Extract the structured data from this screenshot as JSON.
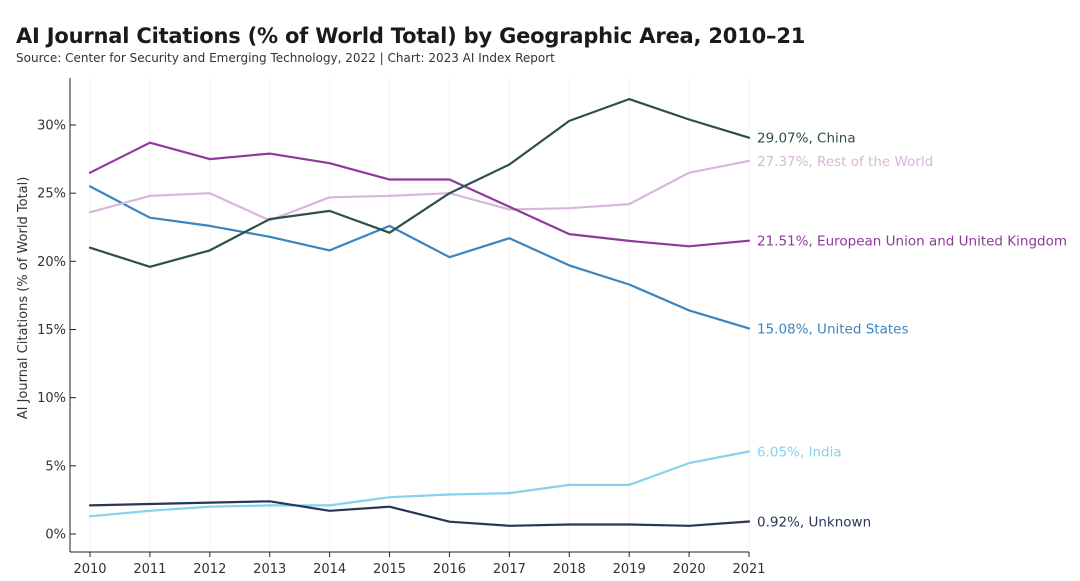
{
  "header": {
    "title": "AI Journal Citations (% of World Total) by Geographic Area, 2010–21",
    "subtitle": "Source: Center for Security and Emerging Technology, 2022 | Chart: 2023 AI Index Report"
  },
  "chart_data": {
    "type": "line",
    "title": "AI Journal Citations (% of World Total) by Geographic Area, 2010–21",
    "xlabel": "",
    "ylabel": "AI Journal Citations (% of World Total)",
    "x": [
      2010,
      2011,
      2012,
      2013,
      2014,
      2015,
      2016,
      2017,
      2018,
      2019,
      2020,
      2021
    ],
    "xtick_labels": [
      "2010",
      "2011",
      "2012",
      "2013",
      "2014",
      "2015",
      "2016",
      "2017",
      "2018",
      "2019",
      "2020",
      "2021"
    ],
    "ylim": [
      0,
      33
    ],
    "yticks": [
      0,
      5,
      10,
      15,
      20,
      25,
      30
    ],
    "ytick_labels": [
      "0%",
      "5%",
      "10%",
      "15%",
      "20%",
      "25%",
      "30%"
    ],
    "grid": "vertical",
    "series": [
      {
        "name": "China",
        "color": "#2e4f4f",
        "end_label": "29.07%, China",
        "values": [
          21.0,
          19.6,
          20.8,
          23.1,
          23.7,
          22.1,
          25.0,
          27.1,
          30.3,
          31.9,
          30.4,
          29.07
        ]
      },
      {
        "name": "Rest of the World",
        "color": "#d7b7d9",
        "end_label": "27.37%, Rest of the World",
        "values": [
          23.6,
          24.8,
          25.0,
          23.0,
          24.7,
          24.8,
          25.0,
          23.8,
          23.9,
          24.2,
          26.5,
          27.37
        ]
      },
      {
        "name": "European Union and United Kingdom",
        "color": "#8e3a9a",
        "end_label": "21.51%, European Union and United Kingdom",
        "values": [
          26.5,
          28.7,
          27.5,
          27.9,
          27.2,
          26.0,
          26.0,
          24.0,
          22.0,
          21.5,
          21.1,
          21.51
        ]
      },
      {
        "name": "United States",
        "color": "#3a85c0",
        "end_label": "15.08%, United States",
        "values": [
          25.5,
          23.2,
          22.6,
          21.8,
          20.8,
          22.6,
          20.3,
          21.7,
          19.7,
          18.3,
          16.4,
          15.08
        ]
      },
      {
        "name": "India",
        "color": "#86d2ee",
        "end_label": "6.05%, India",
        "values": [
          1.3,
          1.7,
          2.0,
          2.1,
          2.1,
          2.7,
          2.9,
          3.0,
          3.6,
          3.6,
          5.2,
          6.05
        ]
      },
      {
        "name": "Unknown",
        "color": "#283659",
        "end_label": "0.92%, Unknown",
        "values": [
          2.1,
          2.2,
          2.3,
          2.4,
          1.7,
          2.0,
          0.9,
          0.6,
          0.7,
          0.7,
          0.6,
          0.92
        ]
      }
    ]
  }
}
